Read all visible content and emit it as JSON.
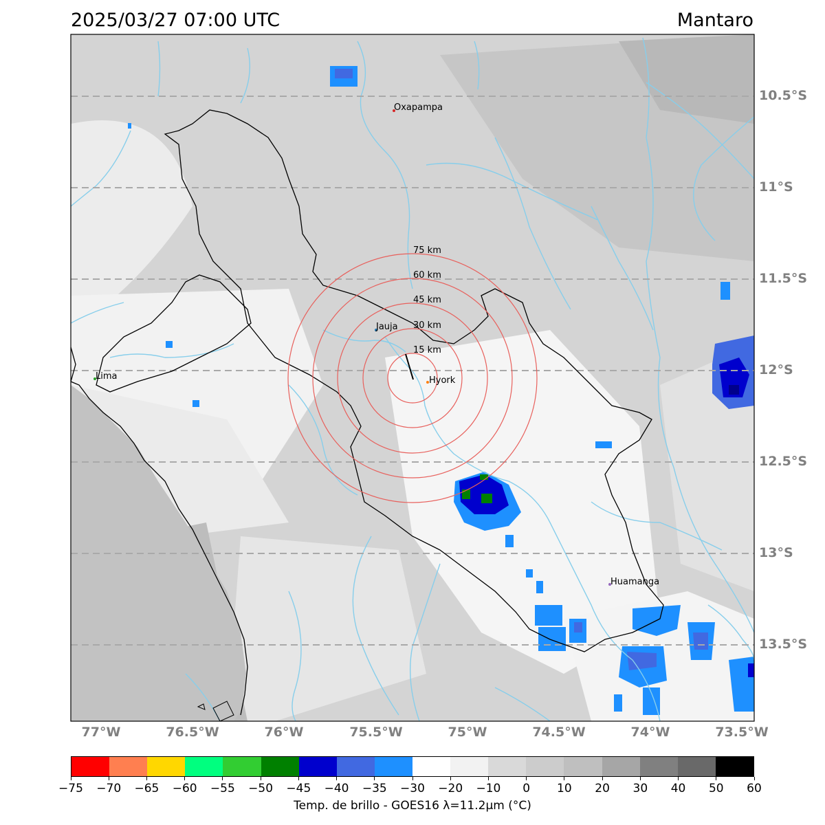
{
  "header": {
    "datetime": "2025/03/27 07:00 UTC",
    "region": "Mantaro"
  },
  "map": {
    "lat_ticks": [
      "10.5°S",
      "11°S",
      "11.5°S",
      "12°S",
      "12.5°S",
      "13°S",
      "13.5°S"
    ],
    "lon_ticks": [
      "77°W",
      "76.5°W",
      "76°W",
      "75.5°W",
      "75°W",
      "74.5°W",
      "74°W",
      "73.5°W"
    ],
    "cities": [
      {
        "name": "Oxapampa",
        "color": "#d62728"
      },
      {
        "name": "Jauja",
        "color": "#1f77b4"
      },
      {
        "name": "Hyork",
        "color": "#ff7f0e"
      },
      {
        "name": "Lima",
        "color": "#2ca02c"
      },
      {
        "name": "Huamanga",
        "color": "#9467bd"
      }
    ],
    "range_rings": [
      "15 km",
      "30 km",
      "45 km",
      "60 km",
      "75 km"
    ],
    "ring_color": "#e8605c",
    "river_color": "#87ceeb",
    "gridline_color": "#a9a9a9"
  },
  "colorbar": {
    "ticks": [
      "−75",
      "−70",
      "−65",
      "−60",
      "−55",
      "−50",
      "−45",
      "−40",
      "−35",
      "−30",
      "−20",
      "−10",
      "0",
      "10",
      "20",
      "30",
      "40",
      "50",
      "60"
    ],
    "colors": [
      "#ff0000",
      "#ff7f50",
      "#ffd700",
      "#00ff7f",
      "#32cd32",
      "#008000",
      "#0000cd",
      "#4169e1",
      "#1e90ff",
      "#ffffff",
      "#f2f2f2",
      "#d9d9d9",
      "#cccccc",
      "#bfbfbf",
      "#a6a6a6",
      "#808080",
      "#696969",
      "#000000"
    ],
    "label": "Temp. de brillo - GOES16 λ=11.2μm (°C)"
  }
}
